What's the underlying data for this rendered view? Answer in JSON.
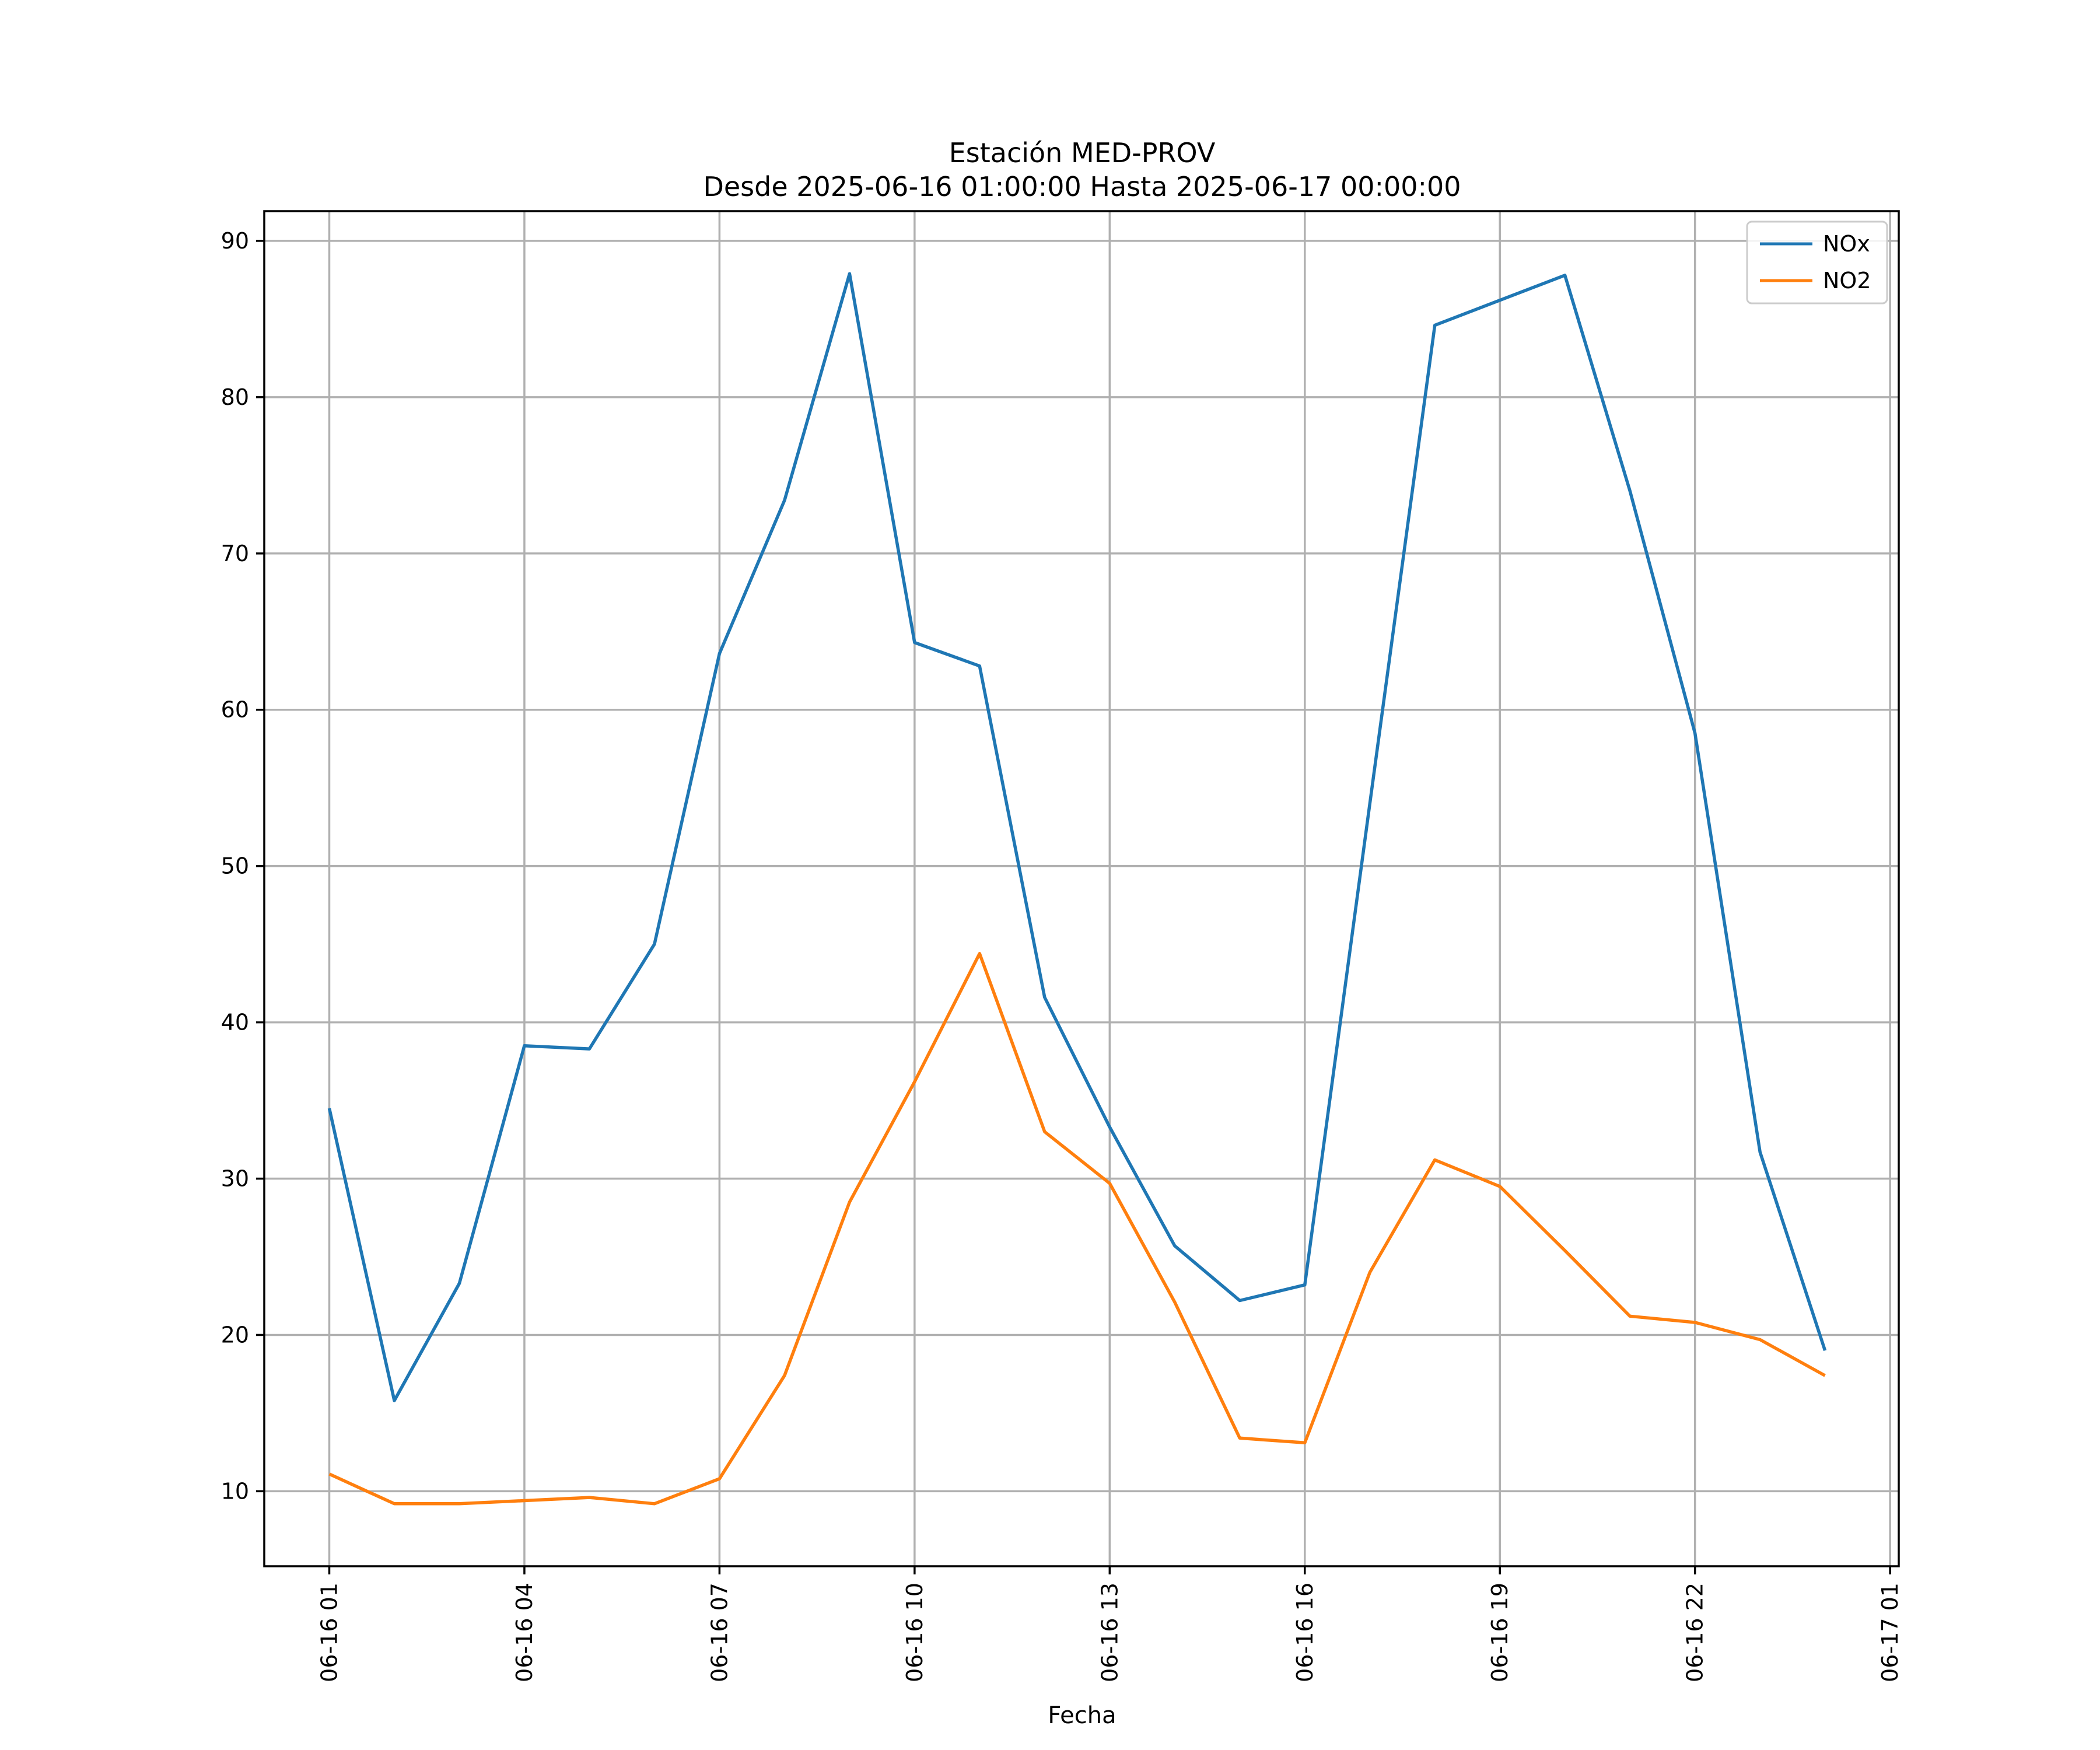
{
  "chart_data": {
    "type": "line",
    "title_line1": "Estación MED-PROV",
    "title_line2": "Desde 2025-06-16 01:00:00 Hasta 2025-06-17 00:00:00",
    "xlabel": "Fecha",
    "ylabel": "",
    "x": [
      "06-16 01",
      "06-16 02",
      "06-16 03",
      "06-16 04",
      "06-16 05",
      "06-16 06",
      "06-16 07",
      "06-16 08",
      "06-16 09",
      "06-16 10",
      "06-16 11",
      "06-16 12",
      "06-16 13",
      "06-16 14",
      "06-16 15",
      "06-16 16",
      "06-16 17",
      "06-16 18",
      "06-16 19",
      "06-16 20",
      "06-16 21",
      "06-16 22",
      "06-16 23",
      "06-17 00"
    ],
    "xticks": [
      "06-16 01",
      "06-16 04",
      "06-16 07",
      "06-16 10",
      "06-16 13",
      "06-16 16",
      "06-16 19",
      "06-16 22",
      "06-17 01"
    ],
    "xlim": [
      "06-16 00:00",
      "06-17 01:08"
    ],
    "yticks": [
      10,
      20,
      30,
      40,
      50,
      60,
      70,
      80,
      90
    ],
    "ylim": [
      5.2,
      91.9
    ],
    "grid": true,
    "legend_position": "top-right",
    "series": [
      {
        "name": "NOx",
        "color": "#1f77b4",
        "values": [
          34.5,
          15.8,
          23.3,
          38.5,
          38.3,
          45.0,
          63.6,
          73.4,
          87.9,
          64.3,
          62.8,
          41.6,
          33.3,
          25.7,
          22.2,
          23.2,
          54.0,
          84.6,
          86.2,
          87.8,
          74.0,
          58.5,
          31.7,
          19.0
        ]
      },
      {
        "name": "NO2",
        "color": "#ff7f0e",
        "values": [
          11.1,
          9.2,
          9.2,
          9.4,
          9.6,
          9.2,
          10.8,
          17.4,
          28.5,
          36.2,
          44.4,
          33.0,
          29.7,
          22.1,
          13.4,
          13.1,
          24.0,
          31.2,
          29.5,
          25.4,
          21.2,
          20.8,
          19.7,
          17.4
        ]
      }
    ]
  }
}
